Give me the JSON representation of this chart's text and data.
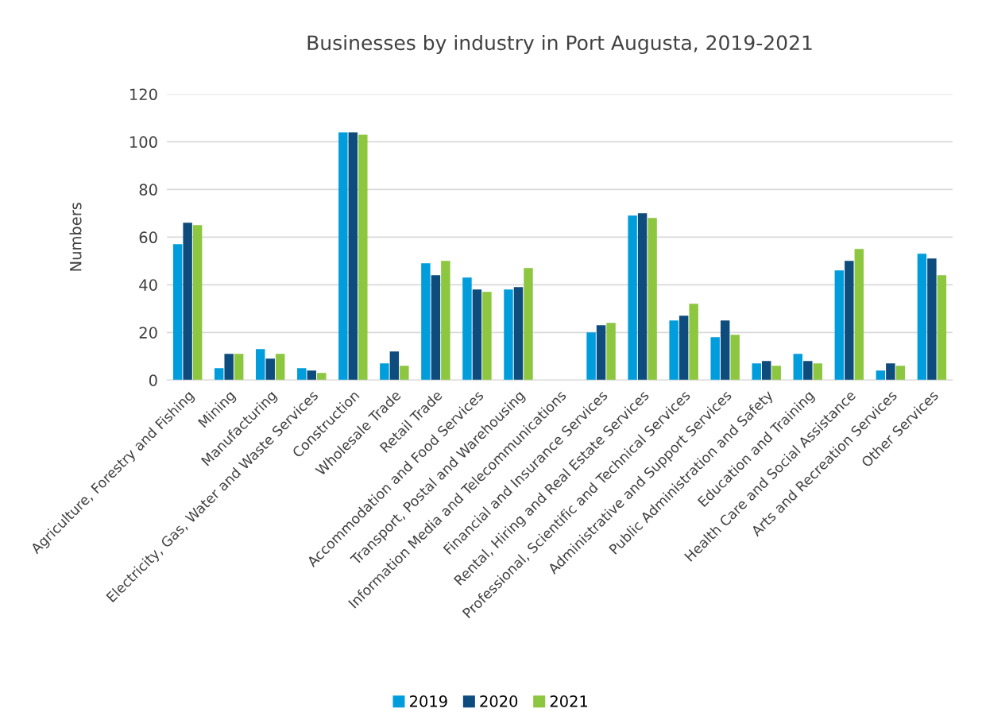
{
  "chart_data": {
    "type": "bar",
    "title": "Businesses by industry in Port Augusta, 2019-2021",
    "ylabel": "Numbers",
    "categories": [
      "Agriculture, Forestry and Fishing",
      "Mining",
      "Manufacturing",
      "Electricity, Gas, Water and Waste Services",
      "Construction",
      "Wholesale Trade",
      "Retail Trade",
      "Accommodation and Food Services",
      "Transport, Postal and Warehousing",
      "Information Media and Telecommunications",
      "Financial and Insurance Services",
      "Rental, Hiring and Real Estate Services",
      "Professional, Scientific and Technical Services",
      "Administrative and Support Services",
      "Public Administration and Safety",
      "Education and Training",
      "Health Care and Social Assistance",
      "Arts and Recreation Services",
      "Other Services"
    ],
    "series": [
      {
        "name": "2019",
        "color": "#009ddc",
        "values": [
          57,
          5,
          13,
          5,
          104,
          7,
          49,
          43,
          38,
          0,
          20,
          69,
          25,
          18,
          7,
          11,
          46,
          4,
          53
        ]
      },
      {
        "name": "2020",
        "color": "#0e4c7e",
        "values": [
          66,
          11,
          9,
          4,
          104,
          12,
          44,
          38,
          39,
          0,
          23,
          70,
          27,
          25,
          8,
          8,
          50,
          7,
          51
        ]
      },
      {
        "name": "2021",
        "color": "#8dc63f",
        "values": [
          65,
          11,
          11,
          3,
          103,
          6,
          50,
          37,
          47,
          0,
          24,
          68,
          32,
          19,
          6,
          7,
          55,
          6,
          44
        ]
      }
    ],
    "ylim": [
      0,
      120
    ],
    "yticks": [
      0,
      20,
      40,
      60,
      80,
      100,
      120
    ],
    "grid": "y",
    "legend": "bottom"
  }
}
